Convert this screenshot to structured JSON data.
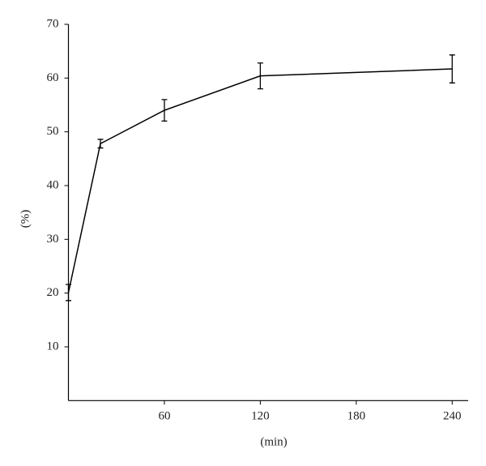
{
  "chart_data": {
    "type": "line",
    "x_label": "(min)",
    "y_label": "(%)",
    "x": [
      0,
      20,
      60,
      120,
      240
    ],
    "values": [
      20.1,
      47.8,
      54.0,
      60.4,
      61.7
    ],
    "errors": [
      1.5,
      0.8,
      2.0,
      2.4,
      2.6
    ],
    "color": "#000000",
    "xlim": [
      0,
      250
    ],
    "xticks": [
      60,
      120,
      180,
      240
    ],
    "ylim": [
      0,
      70
    ],
    "yticks": [
      10,
      20,
      30,
      40,
      50,
      60,
      70
    ]
  }
}
